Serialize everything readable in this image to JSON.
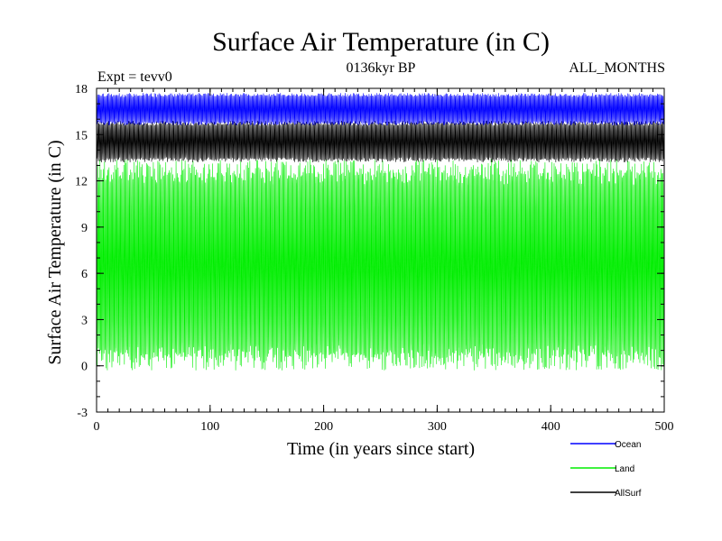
{
  "chart_data": {
    "type": "line",
    "title": "Surface Air Temperature (in C)",
    "subtitle": "0136kyr BP",
    "expt_label": "Expt = tevv0",
    "months_label": "ALL_MONTHS",
    "xlabel": "Time (in years since start)",
    "ylabel": "Surface Air Temperature (in C)",
    "xlim": [
      0,
      500
    ],
    "ylim": [
      -3,
      18
    ],
    "x_ticks": [
      0,
      100,
      200,
      300,
      400,
      500
    ],
    "y_ticks": [
      -3,
      0,
      3,
      6,
      9,
      12,
      15,
      18
    ],
    "grid": false,
    "legend_position": "bottom-right",
    "series": [
      {
        "name": "Ocean",
        "color": "#0000ff",
        "monthly_band": [
          15.6,
          17.7
        ]
      },
      {
        "name": "Land",
        "color": "#00ee00",
        "monthly_band": [
          -0.3,
          13.4
        ]
      },
      {
        "name": "AllSurf",
        "color": "#000000",
        "monthly_band": [
          13.2,
          15.9
        ]
      }
    ]
  }
}
